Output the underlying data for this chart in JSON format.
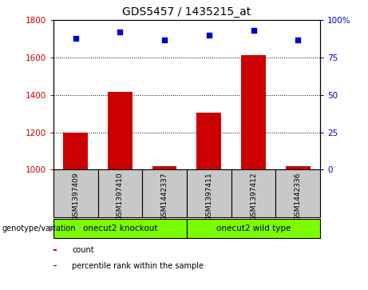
{
  "title": "GDS5457 / 1435215_at",
  "samples": [
    "GSM1397409",
    "GSM1397410",
    "GSM1442337",
    "GSM1397411",
    "GSM1397412",
    "GSM1442336"
  ],
  "counts": [
    1200,
    1415,
    1020,
    1305,
    1615,
    1020
  ],
  "percentile_ranks": [
    88,
    92,
    87,
    90,
    93,
    87
  ],
  "ylim_left": [
    1000,
    1800
  ],
  "ylim_right": [
    0,
    100
  ],
  "yticks_left": [
    1000,
    1200,
    1400,
    1600,
    1800
  ],
  "yticks_right": [
    0,
    25,
    50,
    75,
    100
  ],
  "bar_color": "#cc0000",
  "dot_color": "#0000cc",
  "groups": [
    {
      "label": "onecut2 knockout",
      "indices": [
        0,
        1,
        2
      ],
      "color": "#7cfc00"
    },
    {
      "label": "onecut2 wild type",
      "indices": [
        3,
        4,
        5
      ],
      "color": "#7cfc00"
    }
  ],
  "group_label": "genotype/variation",
  "legend_items": [
    {
      "label": "count",
      "color": "#cc0000"
    },
    {
      "label": "percentile rank within the sample",
      "color": "#0000cc"
    }
  ],
  "tick_label_color_left": "#cc0000",
  "tick_label_color_right": "#0000cc",
  "bar_bottom": 1000,
  "sample_box_color": "#c8c8c8"
}
